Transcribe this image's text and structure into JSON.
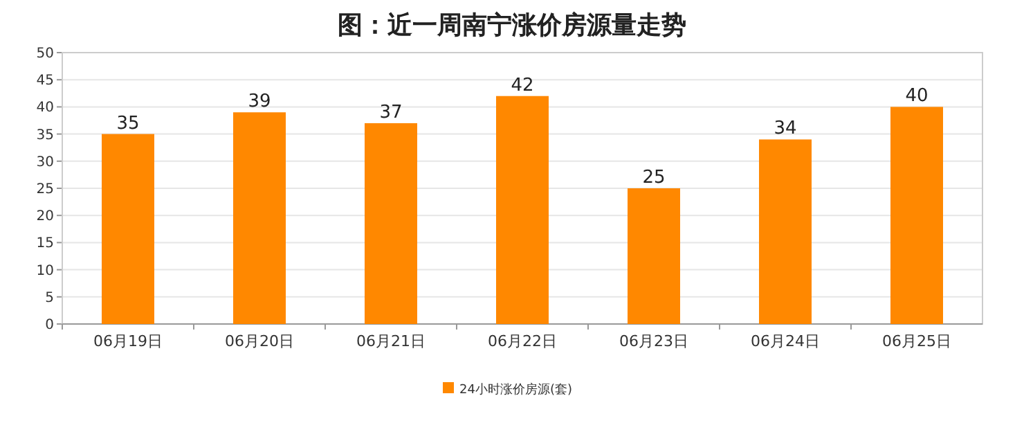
{
  "chart_data": {
    "type": "bar",
    "title": "图：近一周南宁涨价房源量走势",
    "categories": [
      "06月19日",
      "06月20日",
      "06月21日",
      "06月22日",
      "06月23日",
      "06月24日",
      "06月25日"
    ],
    "series": [
      {
        "name": "24小时涨价房源(套)",
        "color": "#ff8800",
        "values": [
          35,
          39,
          37,
          42,
          25,
          34,
          40
        ]
      }
    ],
    "ylim": [
      0,
      50
    ],
    "yticks": [
      0,
      5,
      10,
      15,
      20,
      25,
      30,
      35,
      40,
      45,
      50
    ],
    "grid": "y",
    "legend": "bottom",
    "data_labels": true
  }
}
